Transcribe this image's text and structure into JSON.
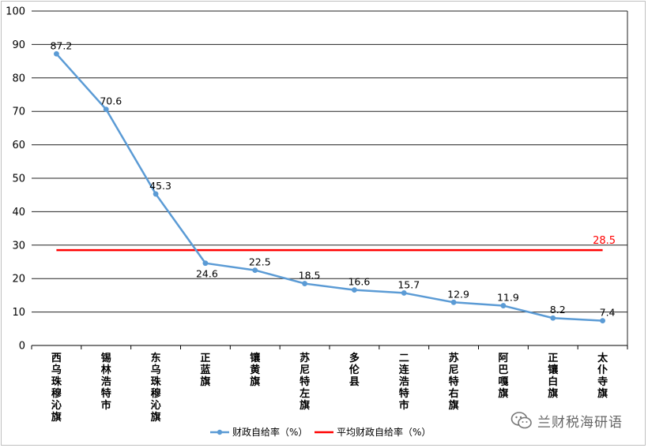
{
  "chart_data": {
    "type": "line",
    "title": "",
    "xlabel": "",
    "ylabel": "",
    "ylim": [
      0,
      100
    ],
    "yticks": [
      0,
      10,
      20,
      30,
      40,
      50,
      60,
      70,
      80,
      90,
      100
    ],
    "grid": "horizontal",
    "legend_position": "bottom",
    "categories": [
      "西乌珠穆沁旗",
      "锡林浩特市",
      "东乌珠穆沁旗",
      "正蓝旗",
      "镶黄旗",
      "苏尼特左旗",
      "多伦县",
      "二连浩特市",
      "苏尼特右旗",
      "阿巴嘎旗",
      "正镶白旗",
      "太仆寺旗"
    ],
    "series": [
      {
        "name": "财政自给率（%）",
        "values": [
          87.2,
          70.6,
          45.3,
          24.6,
          22.5,
          18.5,
          16.6,
          15.7,
          12.9,
          11.9,
          8.2,
          7.4
        ],
        "labels": [
          "87.2",
          "70.6",
          "45.3",
          "24.6",
          "22.5",
          "18.5",
          "16.6",
          "15.7",
          "12.9",
          "11.9",
          "8.2",
          "7.4"
        ],
        "color": "#5b9bd5"
      },
      {
        "name": "平均财政自给率（%）",
        "value": 28.5,
        "label": "28.5",
        "color": "#ff0000"
      }
    ]
  },
  "watermark": {
    "text": "兰财税海研语",
    "icon": "wechat-icon"
  }
}
